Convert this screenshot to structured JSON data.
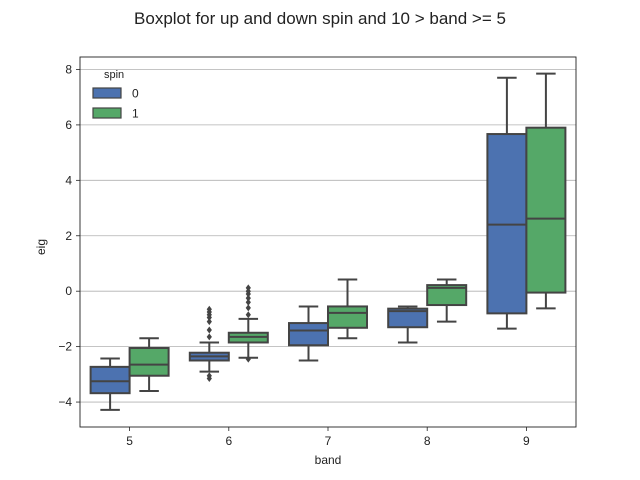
{
  "chart_data": {
    "type": "boxplot",
    "title": "Boxplot for up and down spin and 10 > band >= 5",
    "xlabel": "band",
    "ylabel": "eig",
    "categories": [
      "5",
      "6",
      "7",
      "8",
      "9"
    ],
    "ylim": [
      -4.9,
      8.45
    ],
    "yticks": [
      -4,
      -2,
      0,
      2,
      4,
      6,
      8
    ],
    "grid": "y",
    "legend": {
      "title": "spin",
      "position": "top-left",
      "entries": [
        "0",
        "1"
      ]
    },
    "colors": {
      "0": "#4c72b0",
      "1": "#55a868",
      "edge": "#444444",
      "grid": "#b0b0b0"
    },
    "series": [
      {
        "name": "0",
        "boxes": [
          {
            "category": "5",
            "whisker_low": -4.28,
            "q1": -3.68,
            "median": -3.25,
            "q3": -2.73,
            "whisker_high": -2.43,
            "outliers": []
          },
          {
            "category": "6",
            "whisker_low": -2.9,
            "q1": -2.5,
            "median": -2.35,
            "q3": -2.22,
            "whisker_high": -1.85,
            "outliers": [
              -3.05,
              -3.15,
              -1.65,
              -1.4,
              -1.1,
              -0.95,
              -0.85,
              -0.75,
              -0.65
            ]
          },
          {
            "category": "7",
            "whisker_low": -2.5,
            "q1": -1.95,
            "median": -1.42,
            "q3": -1.15,
            "whisker_high": -0.55,
            "outliers": []
          },
          {
            "category": "8",
            "whisker_low": -1.85,
            "q1": -1.3,
            "median": -0.72,
            "q3": -0.63,
            "whisker_high": -0.55,
            "outliers": []
          },
          {
            "category": "9",
            "whisker_low": -1.35,
            "q1": -0.8,
            "median": 2.4,
            "q3": 5.67,
            "whisker_high": 7.7,
            "outliers": []
          }
        ]
      },
      {
        "name": "1",
        "boxes": [
          {
            "category": "5",
            "whisker_low": -3.6,
            "q1": -3.05,
            "median": -2.65,
            "q3": -2.05,
            "whisker_high": -1.7,
            "outliers": []
          },
          {
            "category": "6",
            "whisker_low": -2.4,
            "q1": -1.85,
            "median": -1.65,
            "q3": -1.5,
            "whisker_high": -1.0,
            "outliers": [
              -2.45,
              -0.85,
              -0.6,
              -0.4,
              -0.25,
              -0.1,
              0.0,
              0.12
            ]
          },
          {
            "category": "7",
            "whisker_low": -1.7,
            "q1": -1.32,
            "median": -0.78,
            "q3": -0.55,
            "whisker_high": 0.42,
            "outliers": []
          },
          {
            "category": "8",
            "whisker_low": -1.1,
            "q1": -0.5,
            "median": 0.12,
            "q3": 0.22,
            "whisker_high": 0.42,
            "outliers": []
          },
          {
            "category": "9",
            "whisker_low": -0.62,
            "q1": -0.05,
            "median": 2.62,
            "q3": 5.9,
            "whisker_high": 7.85,
            "outliers": []
          }
        ]
      }
    ]
  }
}
